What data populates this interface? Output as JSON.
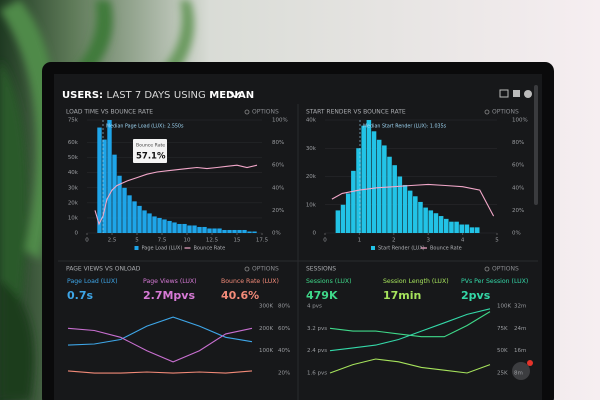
{
  "header": {
    "title": "USERS:",
    "range": "LAST 7 DAYS",
    "using": "USING",
    "stat": "MEDIAN"
  },
  "panels": [
    {
      "title": "LOAD TIME VS BOUNCE RATE",
      "options": "OPTIONS",
      "chart": {
        "type": "histogram",
        "name": "Page Load (LUX)",
        "color": "#1ea5e9",
        "bins": [
          1.0,
          1.5,
          2.0,
          2.5,
          3.0,
          3.5,
          4.0,
          4.5,
          5.0,
          5.5,
          6.0,
          6.5,
          7.0,
          7.5,
          8.0,
          8.5,
          9.0,
          9.5,
          10.0,
          10.5,
          11.0,
          11.5,
          12.0,
          12.5,
          13.0,
          13.5,
          14.0,
          14.5,
          15.0,
          15.5,
          16.0,
          16.5,
          17.0
        ],
        "values": [
          70000,
          62000,
          75000,
          52000,
          38000,
          30000,
          25000,
          21000,
          18000,
          15000,
          13000,
          11000,
          10000,
          9000,
          8000,
          7000,
          6000,
          6000,
          5000,
          5000,
          4000,
          4000,
          3000,
          3000,
          3000,
          2000,
          2000,
          2000,
          2000,
          2000,
          1000,
          1000
        ],
        "ylim": [
          0,
          75000
        ],
        "yticks": [
          0,
          {
            "value": 10000,
            "label": "10k"
          },
          {
            "value": 20000,
            "label": "20k"
          },
          {
            "value": 30000,
            "label": "30k"
          },
          {
            "value": 40000,
            "label": "40k"
          },
          {
            "value": 50000,
            "label": "50k"
          },
          {
            "value": 60000,
            "label": "60k"
          },
          {
            "value": 75000,
            "label": "75k"
          }
        ],
        "xlim": [
          0,
          17.5
        ],
        "xticks": [
          0,
          2.5,
          5,
          7.5,
          10,
          12.5,
          15,
          17.5
        ],
        "line": {
          "name": "Bounce Rate",
          "color": "#f2a7c9",
          "x": [
            0.8,
            1.2,
            1.6,
            2,
            2.5,
            3,
            4,
            5,
            6,
            7,
            8,
            9,
            10,
            11,
            12,
            13,
            14,
            15,
            16,
            17
          ],
          "values": [
            20,
            8,
            15,
            30,
            38,
            42,
            46,
            49,
            52,
            54,
            55,
            56,
            57,
            58,
            57,
            58,
            59,
            60,
            58,
            60
          ]
        },
        "y2lim": [
          0,
          100
        ],
        "y2ticks": [
          {
            "value": 0,
            "label": "0%"
          },
          {
            "value": 20,
            "label": "20%"
          },
          {
            "value": 40,
            "label": "40%"
          },
          {
            "value": 60,
            "label": "60%"
          },
          {
            "value": 80,
            "label": "80%"
          },
          {
            "value": 100,
            "label": "100%"
          }
        ],
        "annotation": "Median Page Load (LUX): 2.550s",
        "tooltip": {
          "title": "Bounce Rate",
          "value": "57.1%"
        }
      }
    },
    {
      "title": "START RENDER VS BOUNCE RATE",
      "options": "OPTIONS",
      "chart": {
        "type": "histogram",
        "name": "Start Render (LUX)",
        "color": "#22c3e6",
        "bins": [
          0.3,
          0.45,
          0.6,
          0.75,
          0.9,
          1.05,
          1.2,
          1.35,
          1.5,
          1.65,
          1.8,
          1.95,
          2.1,
          2.25,
          2.4,
          2.55,
          2.7,
          2.85,
          3.0,
          3.15,
          3.3,
          3.45,
          3.6,
          3.75,
          3.9,
          4.05,
          4.2,
          4.35,
          4.5
        ],
        "values": [
          8000,
          10000,
          14000,
          22000,
          30000,
          38000,
          40000,
          36000,
          33000,
          31000,
          27000,
          24000,
          20000,
          17000,
          15000,
          13000,
          11000,
          9000,
          8000,
          7000,
          6000,
          5000,
          4000,
          4000,
          3000,
          3000,
          2000,
          2000
        ],
        "ylim": [
          0,
          40000
        ],
        "yticks": [
          0,
          {
            "value": 10000,
            "label": "10k"
          },
          {
            "value": 20000,
            "label": "20k"
          },
          {
            "value": 30000,
            "label": "30k"
          },
          {
            "value": 40000,
            "label": "40k"
          }
        ],
        "xlim": [
          0,
          5
        ],
        "xticks": [
          0,
          1,
          2,
          3,
          4,
          5
        ],
        "line": {
          "name": "Bounce Rate",
          "color": "#f2a7c9",
          "x": [
            0.2,
            0.5,
            1,
            1.5,
            2,
            2.5,
            3,
            3.5,
            4,
            4.5,
            4.9
          ],
          "values": [
            30,
            35,
            38,
            40,
            41,
            42,
            43,
            42,
            41,
            38,
            15
          ]
        },
        "y2lim": [
          0,
          100
        ],
        "y2ticks": [
          {
            "value": 0,
            "label": "0%"
          },
          {
            "value": 20,
            "label": "20%"
          },
          {
            "value": 40,
            "label": "40%"
          },
          {
            "value": 60,
            "label": "60%"
          },
          {
            "value": 80,
            "label": "80%"
          },
          {
            "value": 100,
            "label": "100%"
          }
        ],
        "annotation": "Median Start Render (LUX): 1.035s"
      }
    },
    {
      "title": "PAGE VIEWS VS ONLOAD",
      "options": "OPTIONS",
      "metrics": [
        {
          "label": "Page Load (LUX)",
          "value": "0.7s",
          "color": "#3ea6e8"
        },
        {
          "label": "Page Views (LUX)",
          "value": "2.7Mpvs",
          "color": "#d77ad6"
        },
        {
          "label": "Bounce Rate (LUX)",
          "value": "40.6%",
          "color": "#f28a78"
        }
      ],
      "chart": {
        "type": "line",
        "categories": [
          null,
          null,
          null,
          null,
          null,
          null,
          null,
          null
        ],
        "series": [
          {
            "color": "#3ea6e8",
            "values": [
              45,
              46,
              50,
              62,
              70,
              62,
              52,
              48
            ]
          },
          {
            "color": "#c86fd0",
            "values": [
              60,
              58,
              52,
              40,
              30,
              40,
              55,
              60
            ]
          },
          {
            "color": "#f28a78",
            "values": [
              22,
              20,
              20,
              21,
              20,
              21,
              20,
              22
            ]
          }
        ],
        "ylim": [
          0,
          100
        ],
        "yticks": [
          {
            "value": 20,
            "label": "20%"
          },
          {
            "value": 40,
            "label": "40%"
          },
          {
            "value": 60,
            "label": "60%"
          },
          {
            "value": 80,
            "label": "80%"
          }
        ],
        "y2lim": [
          -100000,
          400000
        ],
        "y2ticks": [
          {
            "value": 100000,
            "label": "100K"
          },
          {
            "value": 200000,
            "label": "200K"
          },
          {
            "value": 300000,
            "label": "300K"
          }
        ]
      }
    },
    {
      "title": "SESSIONS",
      "options": "OPTIONS",
      "metrics": [
        {
          "label": "Sessions (LUX)",
          "value": "479K",
          "color": "#3fd98a"
        },
        {
          "label": "Session Length (LUX)",
          "value": "17min",
          "color": "#a6e35c"
        },
        {
          "label": "PVs Per Session (LUX)",
          "value": "2pvs",
          "color": "#34d8a8"
        }
      ],
      "chart": {
        "type": "line",
        "categories": [
          null,
          null,
          null,
          null,
          null,
          null,
          null,
          null
        ],
        "series": [
          {
            "color": "#3fd98a",
            "values": [
              3.2,
              3.1,
              3.1,
              3.0,
              2.9,
              2.9,
              3.3,
              3.8
            ]
          },
          {
            "color": "#a6e35c",
            "values": [
              1.6,
              1.9,
              2.1,
              2.0,
              1.8,
              1.7,
              1.6,
              1.9
            ]
          },
          {
            "color": "#34d8a8",
            "values": [
              2.4,
              2.5,
              2.6,
              2.8,
              3.1,
              3.4,
              3.7,
              3.9
            ]
          }
        ],
        "ylim": [
          1.6,
          4
        ],
        "yticks": [
          {
            "value": 1.6,
            "label": "1.6 pvs"
          },
          {
            "value": 2.4,
            "label": "2.4 pvs"
          },
          {
            "value": 3.2,
            "label": "3.2 pvs"
          },
          {
            "value": 4,
            "label": "4 pvs"
          }
        ],
        "y2lim": [
          25000,
          100000
        ],
        "y2ticks": [
          {
            "value": 25000,
            "label": "25K"
          },
          {
            "value": 50000,
            "label": "50K"
          },
          {
            "value": 75000,
            "label": "75K"
          },
          {
            "value": 100000,
            "label": "100K"
          }
        ],
        "y3lim": [
          8,
          32
        ],
        "y3ticks": [
          {
            "value": 8,
            "label": "8m"
          },
          {
            "value": 16,
            "label": "16m"
          },
          {
            "value": 24,
            "label": "24m"
          },
          {
            "value": 32,
            "label": "32m"
          }
        ]
      }
    }
  ]
}
